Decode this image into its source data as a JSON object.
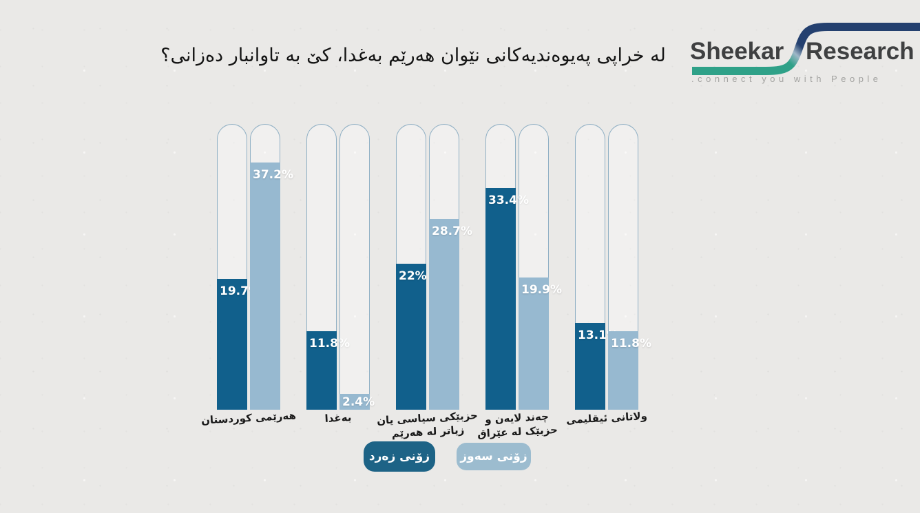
{
  "title": "له خراپی پەیوەندیەکانی نێوان هەرێم بەغدا، کێ به تاوانبار دەزانی؟",
  "logo": {
    "brand_left": "Sheekar",
    "brand_right": "Research",
    "tagline": ".connect you with People"
  },
  "colors": {
    "background": "#eae9e7",
    "dark_series": "#11608c",
    "light_series": "#97b9d0",
    "tube_border": "#8fafc4",
    "legend_dark_pill": "#1d6386",
    "legend_light_pill": "#9cbccf",
    "logo_navy": "#24406f",
    "logo_teal": "#2fa188"
  },
  "legend": [
    {
      "label": "زۆنی زەرد",
      "series": "dark"
    },
    {
      "label": "زۆنی سەوز",
      "series": "light"
    }
  ],
  "chart_data": {
    "type": "bar",
    "orientation": "vertical",
    "rtl": true,
    "title": "له خراپی پەیوەندیەکانی نێوان هەرێم بەغدا، کێ به تاوانبار دەزانی؟",
    "categories": [
      [
        "هەرێمی کوردستان"
      ],
      [
        "بەغدا"
      ],
      [
        "حزبێکی سیاسی یان",
        "زیاتر له هەرێم"
      ],
      [
        "چەند لایەن و",
        "حزبێک له عێراق"
      ],
      [
        "ولاتانی ئیقلیمی"
      ]
    ],
    "series": [
      {
        "name": "زۆنی زەرد",
        "color": "#11608c",
        "values": [
          19.7,
          11.8,
          22,
          33.4,
          13.1
        ]
      },
      {
        "name": "زۆنی سەوز",
        "color": "#97b9d0",
        "values": [
          37.2,
          2.4,
          28.7,
          19.9,
          11.8
        ]
      }
    ],
    "value_labels": [
      [
        "19.7%",
        "37.2%"
      ],
      [
        "11.8%",
        "2.4%"
      ],
      [
        "22%",
        "28.7%"
      ],
      [
        "33.4%",
        "19.9%"
      ],
      [
        "13.1%",
        "11.8%"
      ]
    ],
    "ylim": [
      0,
      43
    ],
    "grid": false,
    "legend_position": "bottom"
  }
}
